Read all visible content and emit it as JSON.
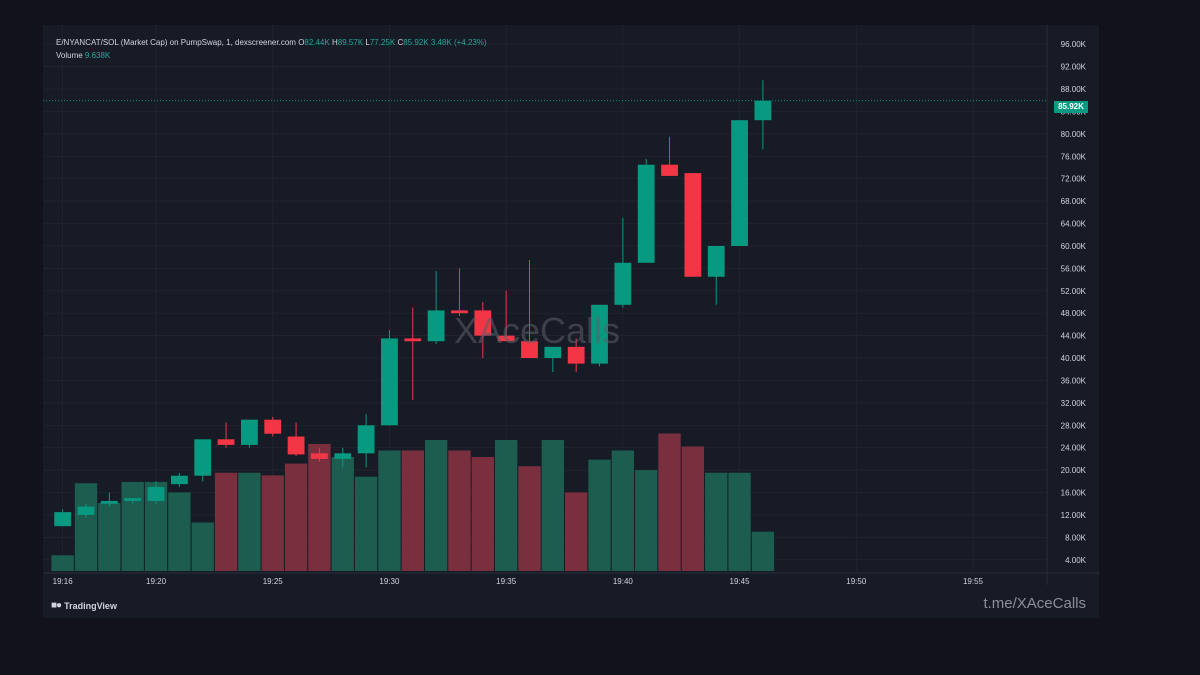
{
  "header": {
    "symbol": "E/NYANCAT/SOL (Market Cap) on PumpSwap, 1, dexscreener.com",
    "o_label": "O",
    "o_value": "82.44K",
    "h_label": "H",
    "h_value": "89.57K",
    "l_label": "L",
    "l_value": "77.25K",
    "c_label": "C",
    "c_value": "85.92K",
    "change": "3.48K (+4.23%)",
    "volume_label": "Volume",
    "volume_value": "9.638K"
  },
  "last_price_label": "85.92K",
  "watermark": "XAceCalls",
  "footer": {
    "brand": "TradingView",
    "handle": "t.me/XAceCalls"
  },
  "colors": {
    "up": "#089981",
    "down": "#f23645",
    "up_volume": "#1c5d4f",
    "down_volume": "#7a2f3f",
    "background": "#171b26",
    "grid": "#232733",
    "axis_text": "#d1d4dc"
  },
  "chart_data": {
    "type": "candlestick",
    "y_axis": {
      "ticks": [
        4000,
        8000,
        12000,
        16000,
        20000,
        24000,
        28000,
        32000,
        36000,
        40000,
        44000,
        48000,
        52000,
        56000,
        60000,
        64000,
        68000,
        72000,
        76000,
        80000,
        84000,
        88000,
        92000,
        96000
      ],
      "tick_labels": [
        "4.00K",
        "8.00K",
        "12.00K",
        "16.00K",
        "20.00K",
        "24.00K",
        "28.00K",
        "32.00K",
        "36.00K",
        "40.00K",
        "44.00K",
        "48.00K",
        "52.00K",
        "56.00K",
        "60.00K",
        "64.00K",
        "68.00K",
        "72.00K",
        "76.00K",
        "80.00K",
        "84.00K",
        "88.00K",
        "92.00K",
        "96.00K"
      ],
      "range": [
        2000,
        98000
      ]
    },
    "x_axis": {
      "tick_labels": [
        "19:16",
        "19:20",
        "19:25",
        "19:30",
        "19:35",
        "19:40",
        "19:45",
        "19:50",
        "19:55"
      ],
      "tick_minutes": [
        16,
        20,
        25,
        30,
        35,
        40,
        45,
        50,
        55
      ],
      "range_minutes": [
        15.5,
        58
      ]
    },
    "candles": [
      {
        "t": 16,
        "o": 10000,
        "h": 13000,
        "l": 10000,
        "c": 12500
      },
      {
        "t": 17,
        "o": 12000,
        "h": 14000,
        "l": 11500,
        "c": 13500
      },
      {
        "t": 18,
        "o": 14000,
        "h": 16000,
        "l": 13500,
        "c": 14500
      },
      {
        "t": 19,
        "o": 14500,
        "h": 15000,
        "l": 14000,
        "c": 15000
      },
      {
        "t": 20,
        "o": 14500,
        "h": 18000,
        "l": 14000,
        "c": 17000
      },
      {
        "t": 21,
        "o": 17500,
        "h": 19500,
        "l": 17000,
        "c": 19000
      },
      {
        "t": 22,
        "o": 19000,
        "h": 25500,
        "l": 18000,
        "c": 25500
      },
      {
        "t": 23,
        "o": 25500,
        "h": 28500,
        "l": 24000,
        "c": 24500
      },
      {
        "t": 24,
        "o": 24500,
        "h": 29000,
        "l": 24000,
        "c": 29000
      },
      {
        "t": 25,
        "o": 29000,
        "h": 29500,
        "l": 26000,
        "c": 26500
      },
      {
        "t": 26,
        "o": 26000,
        "h": 28500,
        "l": 22500,
        "c": 22800
      },
      {
        "t": 27,
        "o": 23000,
        "h": 24000,
        "l": 21500,
        "c": 22000
      },
      {
        "t": 28,
        "o": 22000,
        "h": 24000,
        "l": 20500,
        "c": 23000
      },
      {
        "t": 29,
        "o": 23000,
        "h": 30000,
        "l": 20500,
        "c": 28000
      },
      {
        "t": 30,
        "o": 28000,
        "h": 45000,
        "l": 28000,
        "c": 43500
      },
      {
        "t": 31,
        "o": 43500,
        "h": 49000,
        "l": 32500,
        "c": 43000
      },
      {
        "t": 32,
        "o": 43000,
        "h": 55500,
        "l": 42500,
        "c": 48500
      },
      {
        "t": 33,
        "o": 48500,
        "h": 56000,
        "l": 47500,
        "c": 48000
      },
      {
        "t": 34,
        "o": 48500,
        "h": 50000,
        "l": 40000,
        "c": 44000
      },
      {
        "t": 35,
        "o": 44000,
        "h": 52000,
        "l": 43000,
        "c": 43000
      },
      {
        "t": 36,
        "o": 43000,
        "h": 57500,
        "l": 40000,
        "c": 40000
      },
      {
        "t": 37,
        "o": 40000,
        "h": 42000,
        "l": 37500,
        "c": 42000
      },
      {
        "t": 38,
        "o": 42000,
        "h": 43500,
        "l": 37500,
        "c": 39000
      },
      {
        "t": 39,
        "o": 39000,
        "h": 49500,
        "l": 38500,
        "c": 49500
      },
      {
        "t": 40,
        "o": 49500,
        "h": 65000,
        "l": 49000,
        "c": 57000
      },
      {
        "t": 41,
        "o": 57000,
        "h": 75500,
        "l": 57000,
        "c": 74500
      },
      {
        "t": 42,
        "o": 74500,
        "h": 79500,
        "l": 72500,
        "c": 72500
      },
      {
        "t": 43,
        "o": 73000,
        "h": 73000,
        "l": 54500,
        "c": 54500
      },
      {
        "t": 44,
        "o": 54500,
        "h": 60000,
        "l": 49500,
        "c": 60000
      },
      {
        "t": 45,
        "o": 60000,
        "h": 82500,
        "l": 60000,
        "c": 82440
      },
      {
        "t": 46,
        "o": 82440,
        "h": 89570,
        "l": 77250,
        "c": 85920
      }
    ],
    "volume_direction": [
      "up",
      "up",
      "up",
      "up",
      "up",
      "up",
      "up",
      "down",
      "up",
      "down",
      "down",
      "down",
      "up",
      "up",
      "up",
      "down",
      "up",
      "down",
      "down",
      "up",
      "down",
      "up",
      "down",
      "up",
      "up",
      "up",
      "down",
      "down",
      "up",
      "up",
      "up"
    ],
    "volume_relative": [
      0.12,
      0.67,
      0.52,
      0.68,
      0.68,
      0.6,
      0.37,
      0.75,
      0.75,
      0.73,
      0.82,
      0.97,
      0.87,
      0.72,
      0.92,
      0.92,
      1.0,
      0.92,
      0.87,
      1.0,
      0.8,
      1.0,
      0.6,
      0.85,
      0.92,
      0.77,
      1.05,
      0.95,
      0.75,
      0.75,
      0.3
    ],
    "last_price": 85920
  }
}
